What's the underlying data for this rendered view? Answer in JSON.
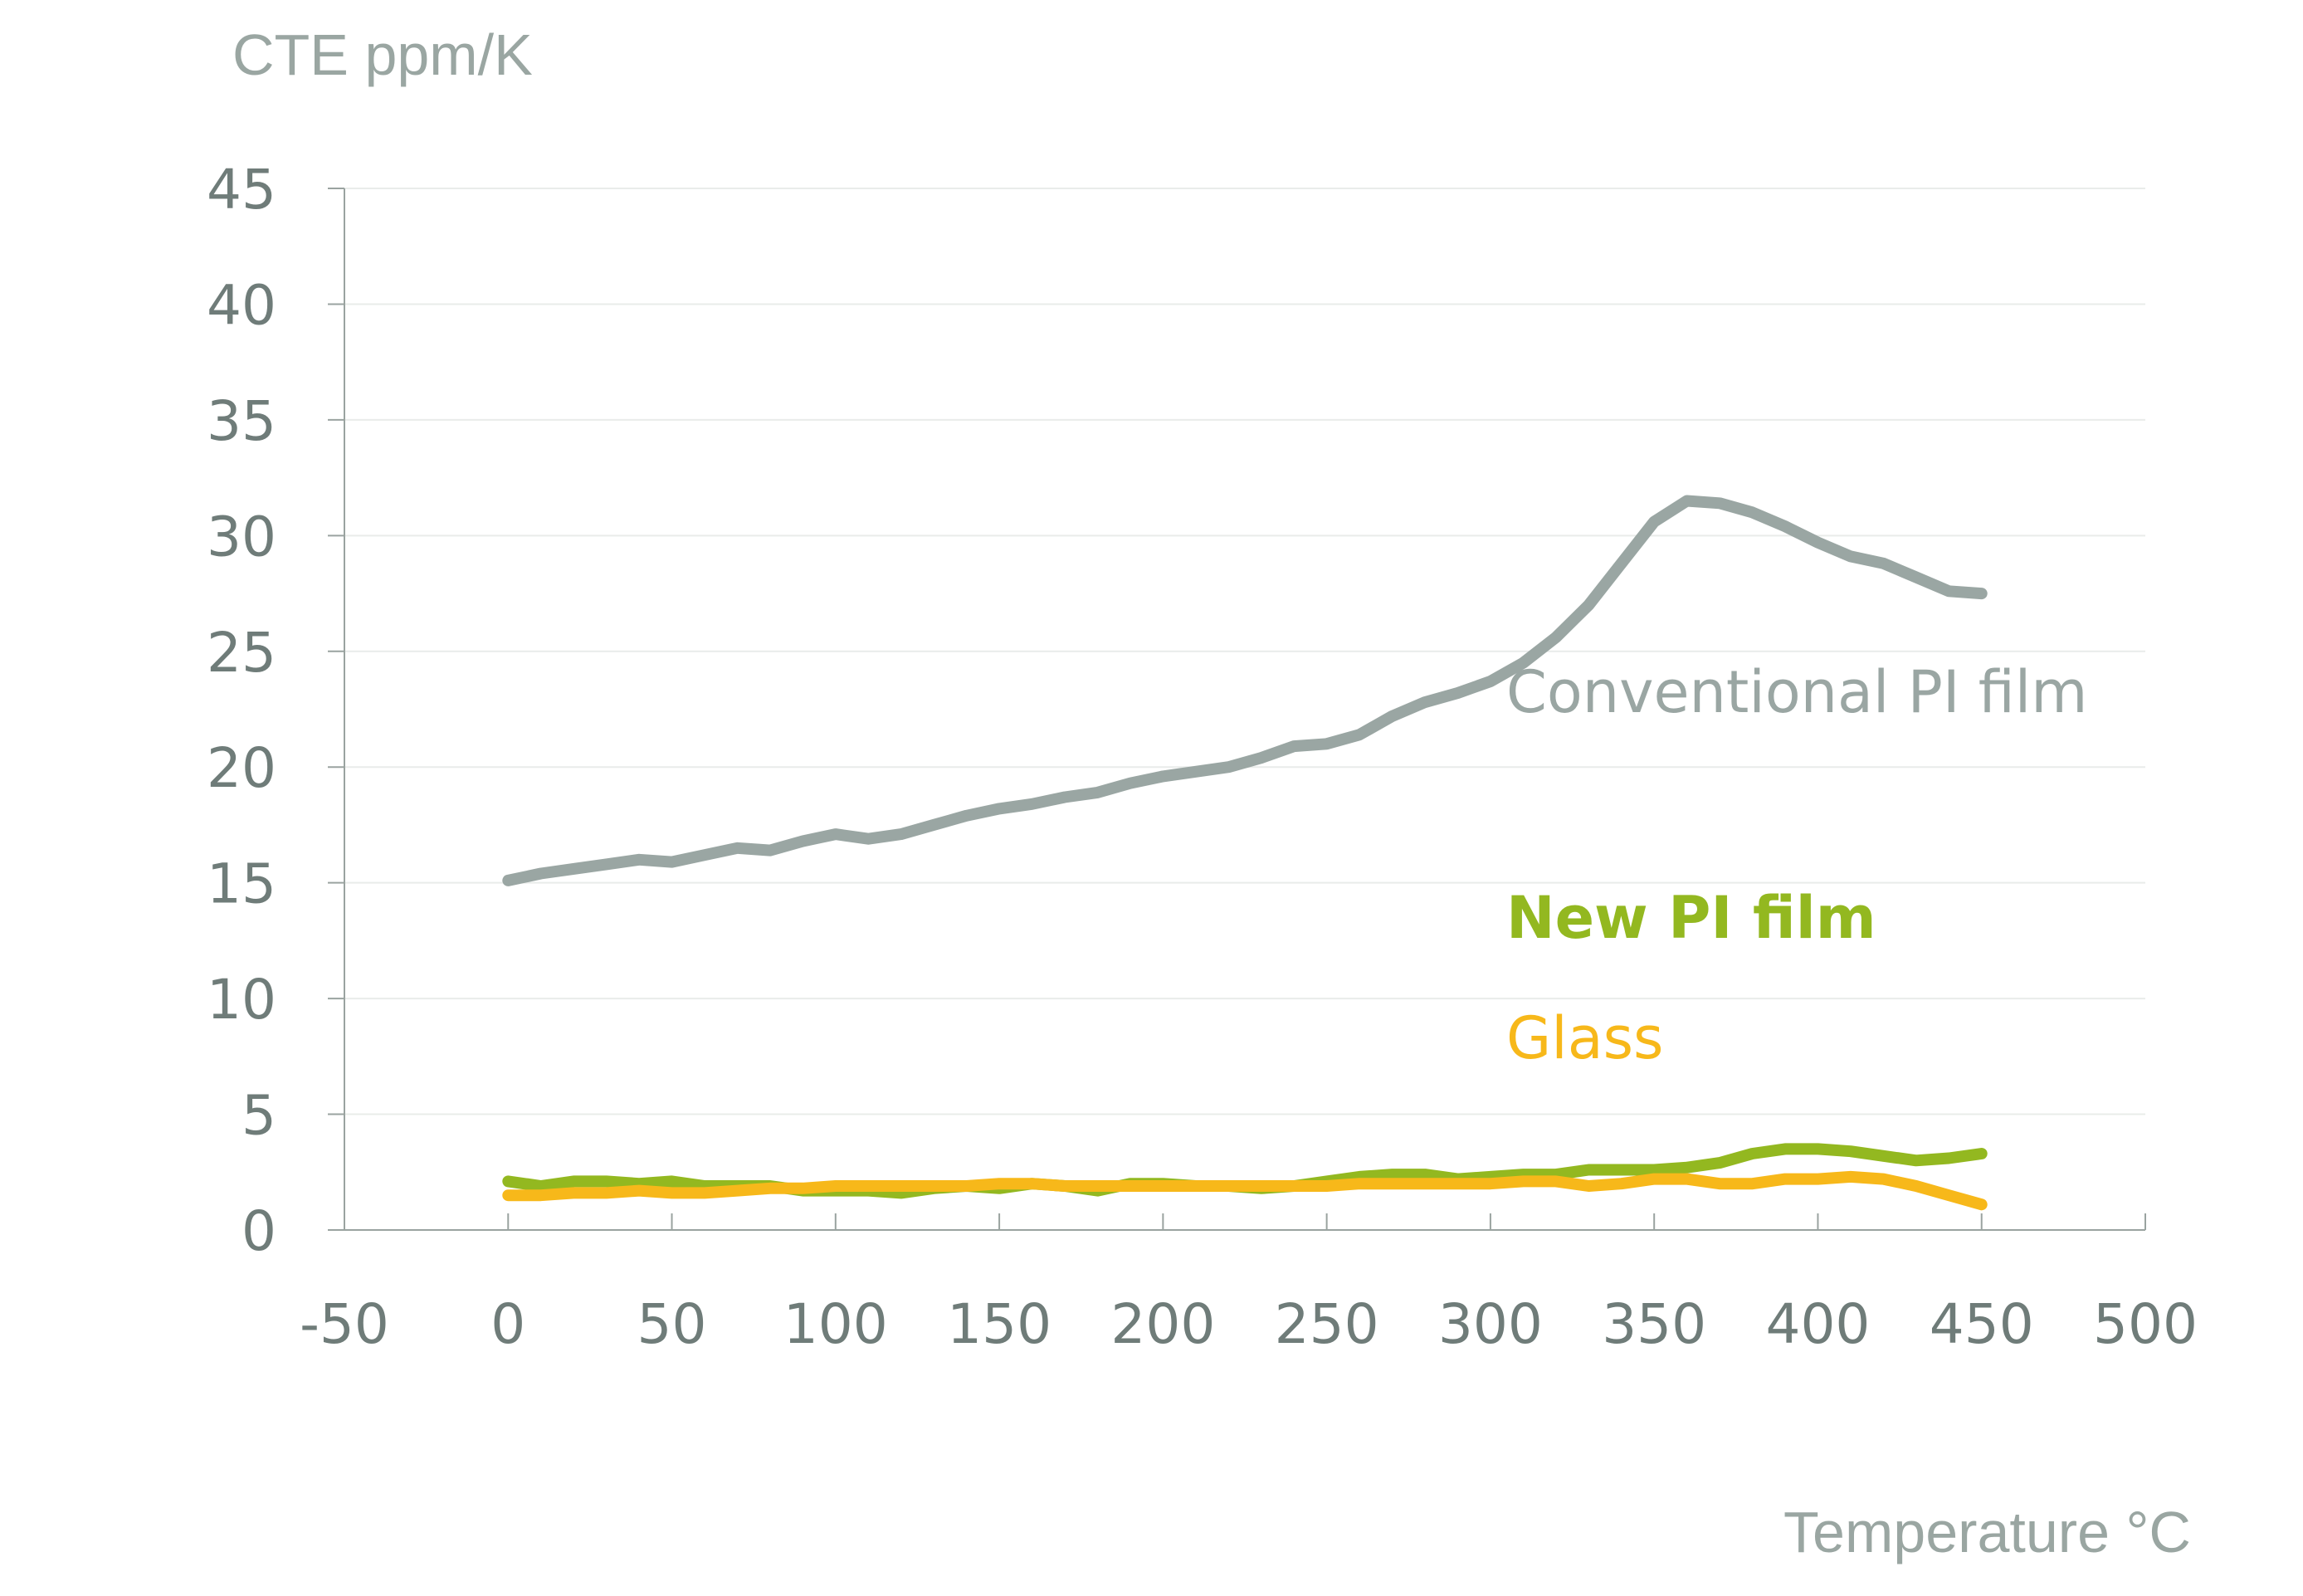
{
  "chart_data": {
    "type": "line",
    "ylabel": "CTE ppm/K",
    "xlabel": "Temperature °C",
    "xlim": [
      -50,
      500
    ],
    "ylim": [
      0,
      45
    ],
    "x_ticks": [
      -50,
      0,
      50,
      100,
      150,
      200,
      250,
      300,
      350,
      400,
      450,
      500
    ],
    "y_ticks": [
      0,
      5,
      10,
      15,
      20,
      25,
      30,
      35,
      40,
      45
    ],
    "grid": "horizontal",
    "x": [
      0,
      10,
      20,
      30,
      40,
      50,
      60,
      70,
      80,
      90,
      100,
      110,
      120,
      130,
      140,
      150,
      160,
      170,
      180,
      190,
      200,
      210,
      220,
      230,
      240,
      250,
      260,
      270,
      280,
      290,
      300,
      310,
      320,
      330,
      340,
      350,
      360,
      370,
      380,
      390,
      400,
      410,
      420,
      430,
      440,
      450
    ],
    "series": [
      {
        "name": "Conventional PI film",
        "color": "#9aa6a3",
        "label_bold": false,
        "values": [
          15.1,
          15.4,
          15.6,
          15.8,
          16.0,
          15.9,
          16.2,
          16.5,
          16.4,
          16.8,
          17.1,
          16.9,
          17.1,
          17.5,
          17.9,
          18.2,
          18.4,
          18.7,
          18.9,
          19.3,
          19.6,
          19.8,
          20.0,
          20.4,
          20.9,
          21.0,
          21.4,
          22.2,
          22.8,
          23.2,
          23.7,
          24.5,
          25.6,
          27.0,
          28.8,
          30.6,
          31.5,
          31.4,
          31.0,
          30.4,
          29.7,
          29.1,
          28.8,
          28.2,
          27.6,
          27.5
        ]
      },
      {
        "name": "New PI film",
        "color": "#93b820",
        "label_bold": true,
        "values": [
          2.1,
          1.9,
          2.1,
          2.1,
          2.0,
          2.1,
          1.9,
          1.9,
          1.9,
          1.7,
          1.7,
          1.7,
          1.6,
          1.8,
          1.9,
          1.8,
          2.0,
          1.9,
          1.7,
          2.0,
          2.0,
          1.9,
          1.9,
          1.8,
          1.9,
          2.1,
          2.3,
          2.4,
          2.4,
          2.2,
          2.3,
          2.4,
          2.4,
          2.6,
          2.6,
          2.6,
          2.7,
          2.9,
          3.3,
          3.5,
          3.5,
          3.4,
          3.2,
          3.0,
          3.1,
          3.3
        ]
      },
      {
        "name": "Glass",
        "color": "#f7b81a",
        "label_bold": false,
        "values": [
          1.5,
          1.5,
          1.6,
          1.6,
          1.7,
          1.6,
          1.6,
          1.7,
          1.8,
          1.8,
          1.9,
          1.9,
          1.9,
          1.9,
          1.9,
          2.0,
          2.0,
          1.9,
          1.9,
          1.9,
          1.9,
          1.9,
          1.9,
          1.9,
          1.9,
          1.9,
          2.0,
          2.0,
          2.0,
          2.0,
          2.0,
          2.1,
          2.1,
          1.9,
          2.0,
          2.2,
          2.2,
          2.0,
          2.0,
          2.2,
          2.2,
          2.3,
          2.2,
          1.9,
          1.5,
          1.1
        ]
      }
    ]
  }
}
